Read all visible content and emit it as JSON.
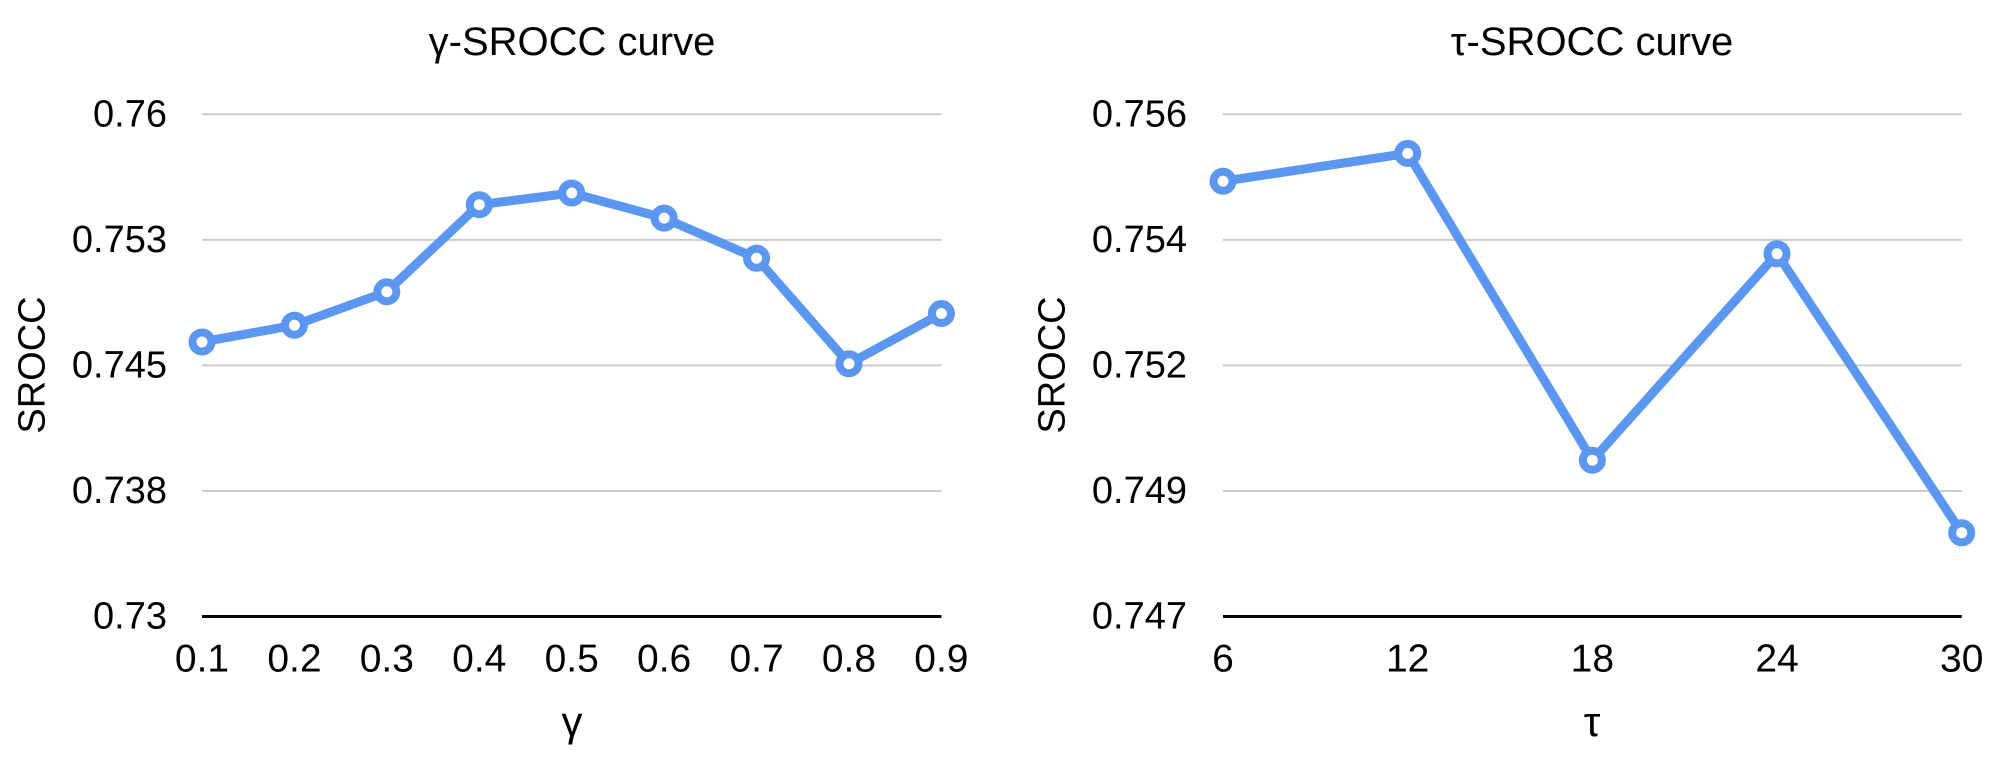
{
  "style": {
    "background": "#ffffff",
    "line_color": "#5b96f0",
    "marker_fill": "#ffffff",
    "grid_color": "#cccccc",
    "axis_color": "#000000",
    "text_color": "#000000"
  },
  "chart_data": [
    {
      "type": "line",
      "title": "γ-SROCC curve",
      "xlabel": "γ",
      "ylabel": "SROCC",
      "x": [
        0.1,
        0.2,
        0.3,
        0.4,
        0.5,
        0.6,
        0.7,
        0.8,
        0.9
      ],
      "x_tick_labels": [
        "0.1",
        "0.2",
        "0.3",
        "0.4",
        "0.5",
        "0.6",
        "0.7",
        "0.8",
        "0.9"
      ],
      "series": [
        {
          "name": "SROCC",
          "values": [
            0.7464,
            0.7474,
            0.7494,
            0.7546,
            0.7553,
            0.7538,
            0.7514,
            0.7451,
            0.7481
          ]
        }
      ],
      "ylim": [
        0.73,
        0.76
      ],
      "y_ticks": [
        {
          "value": 0.73,
          "label": "0.73"
        },
        {
          "value": 0.7375,
          "label": "0.738"
        },
        {
          "value": 0.745,
          "label": "0.745"
        },
        {
          "value": 0.7525,
          "label": "0.753"
        },
        {
          "value": 0.76,
          "label": "0.76"
        }
      ],
      "grid": true,
      "legend": "none",
      "marker": "open-circle"
    },
    {
      "type": "line",
      "title": "τ-SROCC curve",
      "xlabel": "τ",
      "ylabel": "SROCC",
      "x": [
        6,
        12,
        18,
        24,
        30
      ],
      "x_tick_labels": [
        "6",
        "12",
        "18",
        "24",
        "30"
      ],
      "series": [
        {
          "name": "SROCC",
          "values": [
            0.7548,
            0.7553,
            0.7498,
            0.7535,
            0.7485
          ]
        }
      ],
      "ylim": [
        0.747,
        0.756
      ],
      "y_ticks": [
        {
          "value": 0.747,
          "label": "0.747"
        },
        {
          "value": 0.74925,
          "label": "0.749"
        },
        {
          "value": 0.7515,
          "label": "0.752"
        },
        {
          "value": 0.75375,
          "label": "0.754"
        },
        {
          "value": 0.756,
          "label": "0.756"
        }
      ],
      "grid": true,
      "legend": "none",
      "marker": "open-circle"
    }
  ]
}
